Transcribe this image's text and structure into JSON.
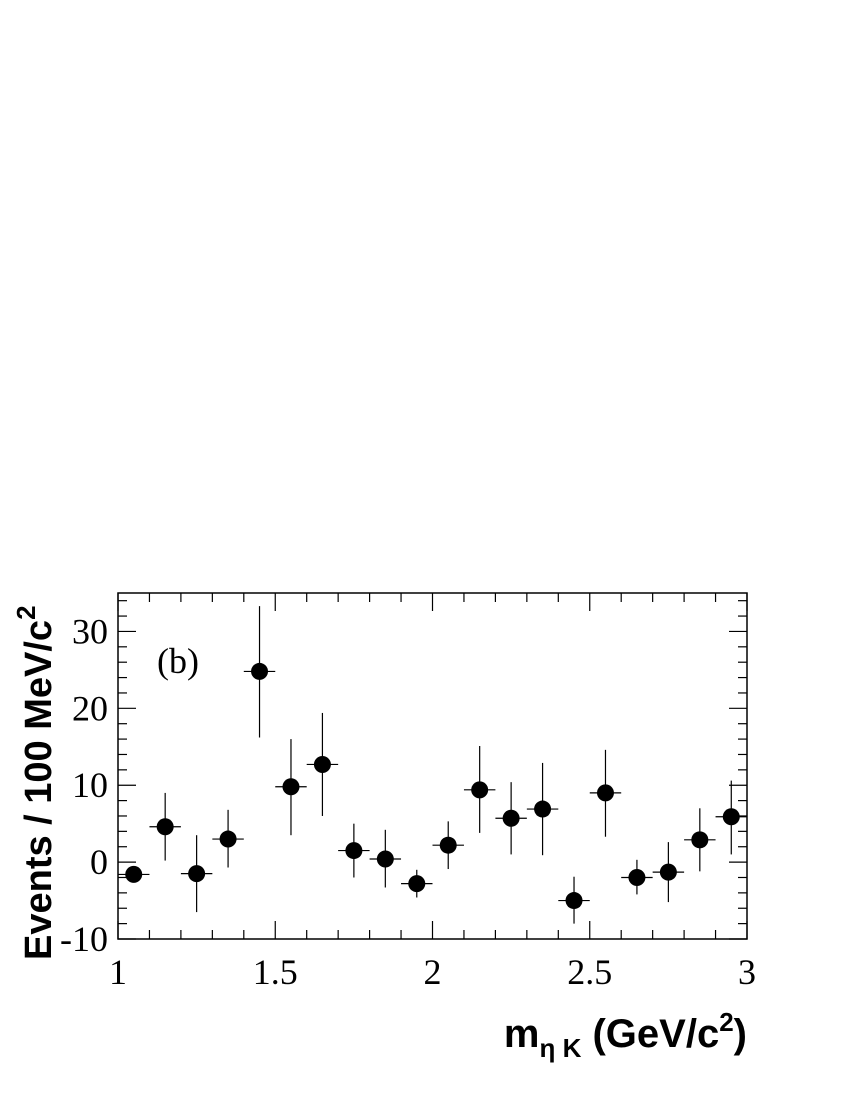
{
  "chart_data": {
    "type": "scatter",
    "panel_label": "(b)",
    "xlabel": {
      "main": "m",
      "sub": "η K",
      "unit_open": " (GeV/c",
      "unit_sup": "2",
      "unit_close": ")"
    },
    "ylabel": {
      "main": "Events / 100 MeV/c",
      "sup": "2"
    },
    "xlim": [
      1,
      3
    ],
    "ylim": [
      -10,
      35
    ],
    "xticks": [
      {
        "v": 1,
        "label": "1"
      },
      {
        "v": 1.5,
        "label": "1.5"
      },
      {
        "v": 2,
        "label": "2"
      },
      {
        "v": 2.5,
        "label": "2.5"
      },
      {
        "v": 3,
        "label": "3"
      }
    ],
    "yticks": [
      {
        "v": -10,
        "label": "-10"
      },
      {
        "v": 0,
        "label": "0"
      },
      {
        "v": 10,
        "label": "10"
      },
      {
        "v": 20,
        "label": "20"
      },
      {
        "v": 30,
        "label": "30"
      }
    ],
    "bin_half_width": 0.05,
    "points": [
      {
        "x": 1.05,
        "y": -1.6,
        "lo": -1.6,
        "hi": -1.6
      },
      {
        "x": 1.15,
        "y": 4.6,
        "lo": 0.2,
        "hi": 9.0
      },
      {
        "x": 1.25,
        "y": -1.5,
        "lo": -6.5,
        "hi": 3.5
      },
      {
        "x": 1.35,
        "y": 3.0,
        "lo": -0.7,
        "hi": 6.8
      },
      {
        "x": 1.45,
        "y": 24.8,
        "lo": 16.2,
        "hi": 33.3
      },
      {
        "x": 1.55,
        "y": 9.8,
        "lo": 3.5,
        "hi": 16.0
      },
      {
        "x": 1.65,
        "y": 12.7,
        "lo": 6.0,
        "hi": 19.4
      },
      {
        "x": 1.75,
        "y": 1.5,
        "lo": -2.0,
        "hi": 5.0
      },
      {
        "x": 1.85,
        "y": 0.4,
        "lo": -3.3,
        "hi": 4.2
      },
      {
        "x": 1.95,
        "y": -2.8,
        "lo": -4.6,
        "hi": -1.0
      },
      {
        "x": 2.05,
        "y": 2.2,
        "lo": -0.9,
        "hi": 5.3
      },
      {
        "x": 2.15,
        "y": 9.4,
        "lo": 3.8,
        "hi": 15.1
      },
      {
        "x": 2.25,
        "y": 5.7,
        "lo": 1.0,
        "hi": 10.4
      },
      {
        "x": 2.35,
        "y": 6.9,
        "lo": 0.9,
        "hi": 12.9
      },
      {
        "x": 2.45,
        "y": -5.0,
        "lo": -8.0,
        "hi": -1.9
      },
      {
        "x": 2.55,
        "y": 9.0,
        "lo": 3.3,
        "hi": 14.6
      },
      {
        "x": 2.65,
        "y": -2.0,
        "lo": -4.2,
        "hi": 0.3
      },
      {
        "x": 2.75,
        "y": -1.3,
        "lo": -5.2,
        "hi": 2.6
      },
      {
        "x": 2.85,
        "y": 2.9,
        "lo": -1.2,
        "hi": 7.0
      },
      {
        "x": 2.95,
        "y": 5.9,
        "lo": 1.0,
        "hi": 10.6
      }
    ],
    "grid": false,
    "marker_color": "#000000"
  }
}
